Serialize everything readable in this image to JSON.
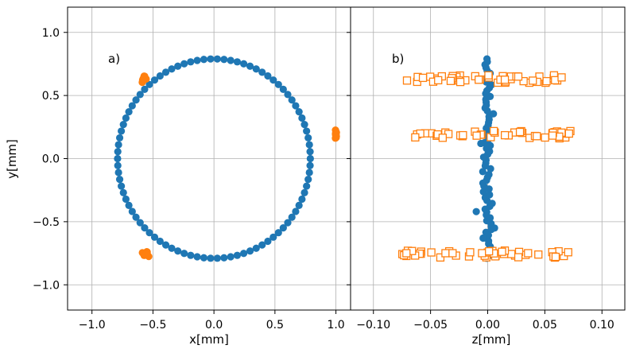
{
  "colors": {
    "blue": "#1f77b4",
    "orange": "#ff7f0e",
    "grid": "#b0b0b0",
    "axes": "#000000",
    "background": "#ffffff"
  },
  "chart_data": [
    {
      "type": "scatter",
      "panel_label": "a)",
      "xlabel": "x[mm]",
      "ylabel": "y[mm]",
      "xlim": [
        -1.2,
        1.12
      ],
      "ylim": [
        -1.2,
        1.2
      ],
      "xticks": [
        -1.0,
        -0.5,
        0.0,
        0.5,
        1.0
      ],
      "xtick_labels": [
        "−1.0",
        "−0.5",
        "0.0",
        "0.5",
        "1.0"
      ],
      "yticks": [
        -1.0,
        -0.5,
        0.0,
        0.5,
        1.0
      ],
      "ytick_labels": [
        "−1.0",
        "−0.5",
        "0.0",
        "0.5",
        "1.0"
      ],
      "grid": true,
      "series": [
        {
          "marker": "filled-circle",
          "color": "#1f77b4",
          "shape": "ring",
          "center": [
            0.0,
            0.0
          ],
          "radius": 0.79,
          "n_points": 90
        },
        {
          "marker": "filled-circle",
          "color": "#ff7f0e",
          "clusters": [
            {
              "center": [
                -0.575,
                0.63
              ],
              "spread": [
                0.035,
                0.035
              ]
            },
            {
              "center": [
                1.0,
                0.19
              ],
              "spread": [
                0.01,
                0.04
              ]
            },
            {
              "center": [
                -0.56,
                -0.755
              ],
              "spread": [
                0.035,
                0.025
              ]
            }
          ]
        }
      ]
    },
    {
      "type": "scatter",
      "panel_label": "b)",
      "xlabel": "z[mm]",
      "ylabel": "",
      "xlim": [
        -0.12,
        0.12
      ],
      "ylim": [
        -1.2,
        1.2
      ],
      "xticks": [
        -0.1,
        -0.05,
        0.0,
        0.05,
        0.1
      ],
      "xtick_labels": [
        "−0.10",
        "−0.05",
        "0.00",
        "0.05",
        "0.10"
      ],
      "yticks": [
        -1.0,
        -0.5,
        0.0,
        0.5,
        1.0
      ],
      "grid": true,
      "series": [
        {
          "marker": "filled-circle",
          "color": "#1f77b4",
          "shape": "column",
          "z_center": 0.0,
          "z_spread": 0.004,
          "y_range": [
            -0.79,
            0.79
          ]
        },
        {
          "marker": "open-square",
          "color": "#ff7f0e",
          "shape": "bands",
          "bands": [
            {
              "y": 0.63,
              "z_range": [
                -0.072,
                0.074
              ],
              "y_spread": 0.03
            },
            {
              "y": 0.19,
              "z_range": [
                -0.075,
                0.074
              ],
              "y_spread": 0.03
            },
            {
              "y": -0.755,
              "z_range": [
                -0.075,
                0.075
              ],
              "y_spread": 0.03
            }
          ]
        }
      ]
    }
  ]
}
